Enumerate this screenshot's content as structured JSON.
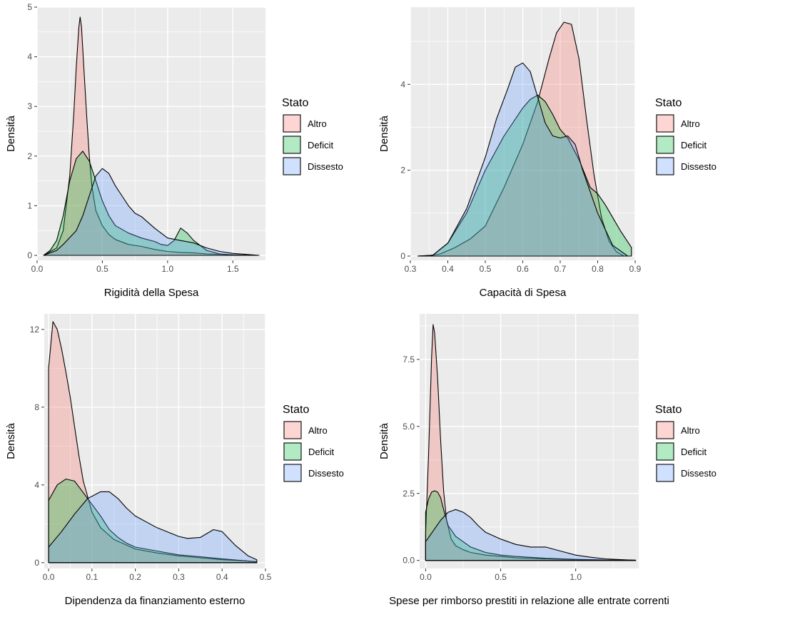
{
  "colors": {
    "panel_bg": "#ebebeb",
    "grid": "#ffffff",
    "Altro": "#f8766d",
    "Deficit": "#00ba38",
    "Dissesto": "#619cff",
    "outline": "#000000"
  },
  "chart_data": [
    {
      "type": "area",
      "xlabel": "Rigidità della Spesa",
      "ylabel": "Densità",
      "xlim": [
        0.0,
        1.75
      ],
      "ylim": [
        -0.1,
        5.0
      ],
      "xticks": [
        0.0,
        0.5,
        1.0,
        1.5
      ],
      "xtick_labels": [
        "0.0",
        "0.5",
        "1.0",
        "1.5"
      ],
      "yticks": [
        0,
        1,
        2,
        3,
        4,
        5
      ],
      "ytick_labels": [
        "0",
        "1",
        "2",
        "3",
        "4",
        "5"
      ],
      "legend": {
        "title": "Stato",
        "placement": "right",
        "entries": [
          "Altro",
          "Deficit",
          "Dissesto"
        ]
      },
      "series": [
        {
          "name": "Altro",
          "x": [
            0.05,
            0.15,
            0.2,
            0.25,
            0.28,
            0.3,
            0.32,
            0.33,
            0.34,
            0.36,
            0.38,
            0.4,
            0.42,
            0.45,
            0.5,
            0.55,
            0.6,
            0.7,
            0.8,
            0.9,
            1.0,
            1.1,
            1.2,
            1.3,
            1.4,
            1.5,
            1.6,
            1.7
          ],
          "y": [
            0,
            0.15,
            0.5,
            1.6,
            2.8,
            3.8,
            4.6,
            4.8,
            4.6,
            3.7,
            2.8,
            2.0,
            1.4,
            0.9,
            0.6,
            0.42,
            0.32,
            0.22,
            0.18,
            0.12,
            0.08,
            0.06,
            0.05,
            0.03,
            0.02,
            0.01,
            0.005,
            0
          ]
        },
        {
          "name": "Deficit",
          "x": [
            0.05,
            0.1,
            0.15,
            0.2,
            0.25,
            0.3,
            0.35,
            0.4,
            0.45,
            0.5,
            0.55,
            0.6,
            0.7,
            0.8,
            0.9,
            0.95,
            1.0,
            1.05,
            1.1,
            1.15,
            1.2,
            1.3,
            1.4,
            1.5,
            1.6,
            1.7
          ],
          "y": [
            0,
            0.1,
            0.3,
            0.8,
            1.5,
            1.95,
            2.1,
            1.9,
            1.5,
            1.1,
            0.8,
            0.6,
            0.45,
            0.35,
            0.28,
            0.22,
            0.2,
            0.3,
            0.55,
            0.45,
            0.3,
            0.1,
            0.03,
            0.01,
            0.005,
            0
          ]
        },
        {
          "name": "Dissesto",
          "x": [
            0.05,
            0.15,
            0.2,
            0.3,
            0.35,
            0.4,
            0.45,
            0.5,
            0.55,
            0.6,
            0.65,
            0.7,
            0.75,
            0.8,
            0.9,
            1.0,
            1.1,
            1.2,
            1.3,
            1.4,
            1.5,
            1.6,
            1.7
          ],
          "y": [
            0,
            0.1,
            0.22,
            0.5,
            0.8,
            1.2,
            1.6,
            1.75,
            1.65,
            1.4,
            1.2,
            1.0,
            0.85,
            0.78,
            0.55,
            0.35,
            0.3,
            0.25,
            0.15,
            0.08,
            0.04,
            0.02,
            0
          ]
        }
      ]
    },
    {
      "type": "area",
      "xlabel": "Capacità di Spesa",
      "ylabel": "Densità",
      "xlim": [
        0.3,
        0.9
      ],
      "ylim": [
        -0.1,
        5.8
      ],
      "xticks": [
        0.3,
        0.4,
        0.5,
        0.6,
        0.7,
        0.8,
        0.9
      ],
      "xtick_labels": [
        "0.3",
        "0.4",
        "0.5",
        "0.6",
        "0.7",
        "0.8",
        "0.9"
      ],
      "yticks": [
        0,
        2,
        4
      ],
      "ytick_labels": [
        "0",
        "2",
        "4"
      ],
      "legend": {
        "title": "Stato",
        "placement": "right",
        "entries": [
          "Altro",
          "Deficit",
          "Dissesto"
        ]
      },
      "series": [
        {
          "name": "Altro",
          "x": [
            0.32,
            0.35,
            0.38,
            0.42,
            0.46,
            0.5,
            0.55,
            0.6,
            0.64,
            0.67,
            0.69,
            0.71,
            0.73,
            0.75,
            0.77,
            0.79,
            0.81,
            0.83,
            0.85,
            0.87
          ],
          "y": [
            0,
            0.01,
            0.05,
            0.2,
            0.4,
            0.7,
            1.6,
            2.6,
            3.6,
            4.6,
            5.2,
            5.45,
            5.4,
            4.6,
            3.2,
            1.9,
            0.9,
            0.35,
            0.1,
            0
          ]
        },
        {
          "name": "Deficit",
          "x": [
            0.32,
            0.36,
            0.4,
            0.45,
            0.5,
            0.55,
            0.6,
            0.62,
            0.64,
            0.66,
            0.68,
            0.7,
            0.72,
            0.75,
            0.78,
            0.8,
            0.82,
            0.84,
            0.86,
            0.89
          ],
          "y": [
            0,
            0.02,
            0.3,
            1.0,
            2.0,
            2.8,
            3.45,
            3.65,
            3.75,
            3.6,
            3.3,
            2.95,
            2.75,
            2.25,
            1.6,
            1.45,
            1.2,
            0.9,
            0.6,
            0.2
          ]
        },
        {
          "name": "Dissesto",
          "x": [
            0.32,
            0.36,
            0.4,
            0.45,
            0.5,
            0.53,
            0.56,
            0.58,
            0.6,
            0.62,
            0.64,
            0.66,
            0.68,
            0.7,
            0.72,
            0.74,
            0.76,
            0.8,
            0.84,
            0.88
          ],
          "y": [
            0,
            0.02,
            0.3,
            1.1,
            2.3,
            3.2,
            3.9,
            4.4,
            4.5,
            4.3,
            3.7,
            3.1,
            2.8,
            2.75,
            2.8,
            2.6,
            2.0,
            1.0,
            0.25,
            0
          ]
        }
      ]
    },
    {
      "type": "area",
      "xlabel": "Dipendenza da finanziamento esterno",
      "ylabel": "Densità",
      "xlim": [
        -0.01,
        0.5
      ],
      "ylim": [
        -0.3,
        12.8
      ],
      "xticks": [
        0.0,
        0.1,
        0.2,
        0.3,
        0.4,
        0.5
      ],
      "xtick_labels": [
        "0.0",
        "0.1",
        "0.2",
        "0.3",
        "0.4",
        "0.5"
      ],
      "yticks": [
        0,
        4,
        8,
        12
      ],
      "ytick_labels": [
        "0",
        "4",
        "8",
        "12"
      ],
      "legend": {
        "title": "Stato",
        "placement": "right",
        "entries": [
          "Altro",
          "Deficit",
          "Dissesto"
        ]
      },
      "series": [
        {
          "name": "Altro",
          "x": [
            0.0,
            0.01,
            0.02,
            0.03,
            0.04,
            0.05,
            0.06,
            0.07,
            0.08,
            0.1,
            0.12,
            0.15,
            0.2,
            0.25,
            0.3,
            0.35,
            0.4,
            0.45,
            0.48
          ],
          "y": [
            10.0,
            12.4,
            12.0,
            11.0,
            9.8,
            8.5,
            7.0,
            5.5,
            4.2,
            2.6,
            1.8,
            1.2,
            0.7,
            0.5,
            0.35,
            0.25,
            0.15,
            0.1,
            0.05
          ]
        },
        {
          "name": "Deficit",
          "x": [
            0.0,
            0.02,
            0.04,
            0.06,
            0.08,
            0.1,
            0.12,
            0.14,
            0.16,
            0.18,
            0.2,
            0.25,
            0.3,
            0.35,
            0.4,
            0.45,
            0.48
          ],
          "y": [
            3.2,
            4.0,
            4.3,
            4.2,
            3.6,
            3.0,
            2.4,
            1.7,
            1.3,
            1.0,
            0.8,
            0.6,
            0.4,
            0.3,
            0.2,
            0.1,
            0.05
          ]
        },
        {
          "name": "Dissesto",
          "x": [
            0.0,
            0.03,
            0.06,
            0.09,
            0.12,
            0.14,
            0.16,
            0.18,
            0.2,
            0.25,
            0.3,
            0.32,
            0.35,
            0.38,
            0.4,
            0.43,
            0.46,
            0.48
          ],
          "y": [
            0.8,
            1.6,
            2.5,
            3.3,
            3.65,
            3.65,
            3.3,
            2.8,
            2.4,
            1.8,
            1.35,
            1.25,
            1.3,
            1.7,
            1.6,
            0.9,
            0.35,
            0.15
          ]
        }
      ]
    },
    {
      "type": "area",
      "xlabel": "Spese per rimborso prestiti in relazione alle entrate correnti",
      "ylabel": "Densità",
      "xlim": [
        -0.04,
        1.42
      ],
      "ylim": [
        -0.3,
        9.2
      ],
      "xticks": [
        0.0,
        0.5,
        1.0
      ],
      "xtick_labels": [
        "0.0",
        "0.5",
        "1.0"
      ],
      "yticks": [
        0.0,
        2.5,
        5.0,
        7.5
      ],
      "ytick_labels": [
        "0.0",
        "2.5",
        "5.0",
        "7.5"
      ],
      "legend": {
        "title": "Stato",
        "placement": "right",
        "entries": [
          "Altro",
          "Deficit",
          "Dissesto"
        ]
      },
      "series": [
        {
          "name": "Altro",
          "x": [
            0.0,
            0.02,
            0.04,
            0.05,
            0.06,
            0.08,
            0.1,
            0.12,
            0.14,
            0.17,
            0.2,
            0.25,
            0.3,
            0.4,
            0.5,
            0.6,
            0.8,
            1.0,
            1.2,
            1.4
          ],
          "y": [
            1.0,
            4.0,
            7.6,
            8.8,
            8.5,
            6.8,
            4.5,
            2.6,
            1.5,
            0.8,
            0.55,
            0.4,
            0.3,
            0.2,
            0.15,
            0.1,
            0.06,
            0.03,
            0.02,
            0.01
          ]
        },
        {
          "name": "Deficit",
          "x": [
            0.0,
            0.02,
            0.04,
            0.06,
            0.08,
            0.1,
            0.12,
            0.15,
            0.2,
            0.25,
            0.3,
            0.4,
            0.5,
            0.6,
            0.8,
            1.0,
            1.2,
            1.4
          ],
          "y": [
            1.8,
            2.3,
            2.55,
            2.6,
            2.55,
            2.35,
            1.9,
            1.3,
            0.9,
            0.7,
            0.5,
            0.3,
            0.2,
            0.15,
            0.08,
            0.04,
            0.02,
            0.01
          ]
        },
        {
          "name": "Dissesto",
          "x": [
            0.0,
            0.05,
            0.1,
            0.15,
            0.2,
            0.25,
            0.3,
            0.35,
            0.4,
            0.5,
            0.6,
            0.7,
            0.8,
            0.9,
            1.0,
            1.1,
            1.2,
            1.3,
            1.4
          ],
          "y": [
            0.7,
            1.1,
            1.5,
            1.8,
            1.9,
            1.8,
            1.6,
            1.3,
            1.05,
            0.8,
            0.6,
            0.5,
            0.5,
            0.35,
            0.2,
            0.12,
            0.06,
            0.03,
            0.01
          ]
        }
      ]
    }
  ]
}
